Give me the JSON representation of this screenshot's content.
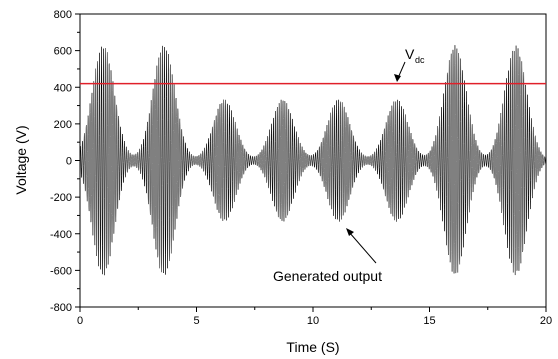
{
  "chart_data": {
    "type": "line",
    "xlabel": "Time (S)",
    "ylabel": "Voltage (V)",
    "xlim": [
      0,
      20
    ],
    "ylim": [
      -800,
      800
    ],
    "x_ticks": [
      0,
      5,
      10,
      15,
      20
    ],
    "y_ticks": [
      -800,
      -600,
      -400,
      -200,
      0,
      200,
      400,
      600,
      800
    ],
    "grid": false,
    "series": [
      {
        "color": "#000000",
        "bursts": [
          {
            "center": 1.0,
            "amplitude": 630
          },
          {
            "center": 3.6,
            "amplitude": 630
          },
          {
            "center": 6.2,
            "amplitude": 335
          },
          {
            "center": 8.7,
            "amplitude": 335
          },
          {
            "center": 11.1,
            "amplitude": 335
          },
          {
            "center": 13.6,
            "amplitude": 335
          },
          {
            "center": 16.1,
            "amplitude": 630
          },
          {
            "center": 18.7,
            "amplitude": 630
          }
        ]
      },
      {
        "color": "#e0202a",
        "x": [
          0,
          20
        ],
        "values": [
          420,
          420
        ]
      }
    ],
    "annotations": {
      "vdc": {
        "main": "V",
        "sub": "dc"
      },
      "output": {
        "text": "Generated output"
      }
    }
  }
}
